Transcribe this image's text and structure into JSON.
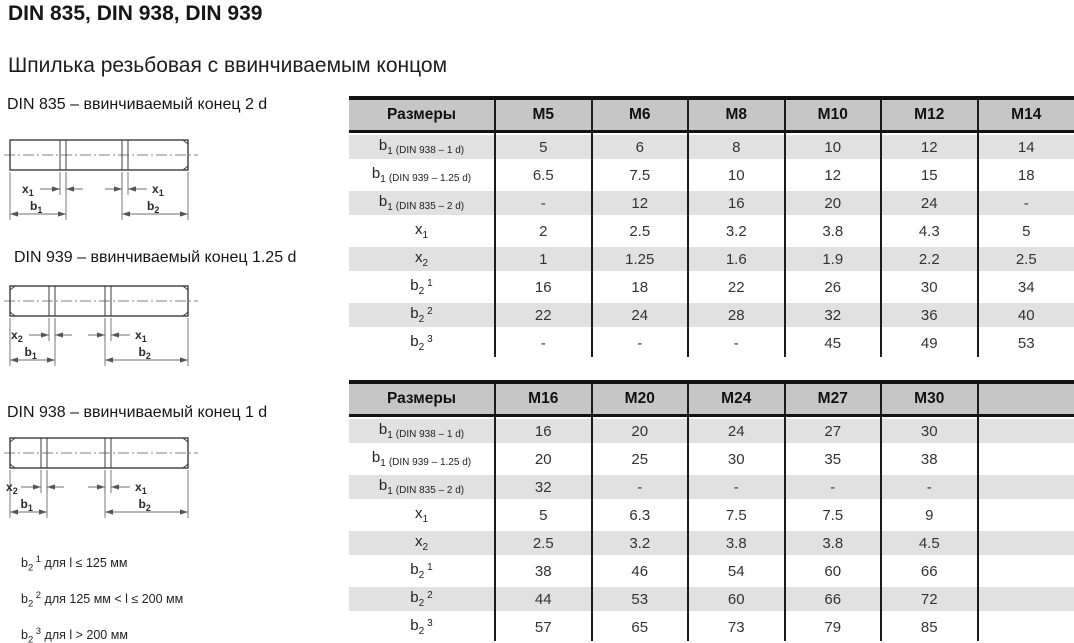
{
  "page": {
    "title": "DIN 835, DIN 938, DIN 939",
    "subtitle": "Шпилька резьбовая с ввинчиваемым концом"
  },
  "colors": {
    "header_bg": "#c6c6c6",
    "row_shaded_bg": "#e1e1e1",
    "table_border": "#1b1b1b"
  },
  "drawings": [
    {
      "caption": "DIN 835 – ввинчиваемый конец 2 d",
      "dims": {
        "left": {
          "base": "x",
          "sub": "1"
        },
        "right": {
          "base": "x",
          "sub": "1"
        },
        "bottom_left": {
          "base": "b",
          "sub": "1"
        },
        "bottom_right": {
          "base": "b",
          "sub": "2"
        }
      }
    },
    {
      "caption": "DIN 939 – ввинчиваемый конец 1.25 d",
      "dims": {
        "left": {
          "base": "x",
          "sub": "2"
        },
        "right": {
          "base": "x",
          "sub": "1"
        },
        "bottom_left": {
          "base": "b",
          "sub": "1"
        },
        "bottom_right": {
          "base": "b",
          "sub": "2"
        }
      }
    },
    {
      "caption": "DIN 938 – ввинчиваемый конец 1 d",
      "dims": {
        "left": {
          "base": "x",
          "sub": "2"
        },
        "right": {
          "base": "x",
          "sub": "1"
        },
        "bottom_left": {
          "base": "b",
          "sub": "1"
        },
        "bottom_right": {
          "base": "b",
          "sub": "2"
        }
      }
    }
  ],
  "footnotes": [
    {
      "base": "b",
      "sub": "2",
      "sup": "1",
      "text": "для l ≤ 125 мм"
    },
    {
      "base": "b",
      "sub": "2",
      "sup": "2",
      "text": "для 125 мм < l ≤ 200 мм"
    },
    {
      "base": "b",
      "sub": "2",
      "sup": "3",
      "text": "для l > 200 мм"
    }
  ],
  "tables": [
    {
      "header": [
        "Размеры",
        "M5",
        "M6",
        "M8",
        "M10",
        "M12",
        "M14"
      ],
      "rows": [
        {
          "label": {
            "base": "b",
            "sub": "1",
            "note": "(DIN 938 – 1 d)"
          },
          "values": [
            "5",
            "6",
            "8",
            "10",
            "12",
            "14"
          ]
        },
        {
          "label": {
            "base": "b",
            "sub": "1",
            "note": "(DIN 939 – 1.25 d)"
          },
          "values": [
            "6.5",
            "7.5",
            "10",
            "12",
            "15",
            "18"
          ]
        },
        {
          "label": {
            "base": "b",
            "sub": "1",
            "note": "(DIN 835 – 2 d)"
          },
          "values": [
            "-",
            "12",
            "16",
            "20",
            "24",
            "-"
          ]
        },
        {
          "label": {
            "base": "x",
            "sub": "1"
          },
          "values": [
            "2",
            "2.5",
            "3.2",
            "3.8",
            "4.3",
            "5"
          ]
        },
        {
          "label": {
            "base": "x",
            "sub": "2"
          },
          "values": [
            "1",
            "1.25",
            "1.6",
            "1.9",
            "2.2",
            "2.5"
          ]
        },
        {
          "label": {
            "base": "b",
            "sub": "2",
            "sup": "1"
          },
          "values": [
            "16",
            "18",
            "22",
            "26",
            "30",
            "34"
          ]
        },
        {
          "label": {
            "base": "b",
            "sub": "2",
            "sup": "2"
          },
          "values": [
            "22",
            "24",
            "28",
            "32",
            "36",
            "40"
          ]
        },
        {
          "label": {
            "base": "b",
            "sub": "2",
            "sup": "3"
          },
          "values": [
            "-",
            "-",
            "-",
            "45",
            "49",
            "53"
          ]
        }
      ]
    },
    {
      "header": [
        "Размеры",
        "M16",
        "M20",
        "M24",
        "M27",
        "M30",
        ""
      ],
      "rows": [
        {
          "label": {
            "base": "b",
            "sub": "1",
            "note": "(DIN 938 – 1 d)"
          },
          "values": [
            "16",
            "20",
            "24",
            "27",
            "30",
            ""
          ]
        },
        {
          "label": {
            "base": "b",
            "sub": "1",
            "note": "(DIN 939 – 1.25 d)"
          },
          "values": [
            "20",
            "25",
            "30",
            "35",
            "38",
            ""
          ]
        },
        {
          "label": {
            "base": "b",
            "sub": "1",
            "note": "(DIN 835 – 2 d)"
          },
          "values": [
            "32",
            "-",
            "-",
            "-",
            "-",
            ""
          ]
        },
        {
          "label": {
            "base": "x",
            "sub": "1"
          },
          "values": [
            "5",
            "6.3",
            "7.5",
            "7.5",
            "9",
            ""
          ]
        },
        {
          "label": {
            "base": "x",
            "sub": "2"
          },
          "values": [
            "2.5",
            "3.2",
            "3.8",
            "3.8",
            "4.5",
            ""
          ]
        },
        {
          "label": {
            "base": "b",
            "sub": "2",
            "sup": "1"
          },
          "values": [
            "38",
            "46",
            "54",
            "60",
            "66",
            ""
          ]
        },
        {
          "label": {
            "base": "b",
            "sub": "2",
            "sup": "2"
          },
          "values": [
            "44",
            "53",
            "60",
            "66",
            "72",
            ""
          ]
        },
        {
          "label": {
            "base": "b",
            "sub": "2",
            "sup": "3"
          },
          "values": [
            "57",
            "65",
            "73",
            "79",
            "85",
            ""
          ]
        }
      ]
    }
  ]
}
